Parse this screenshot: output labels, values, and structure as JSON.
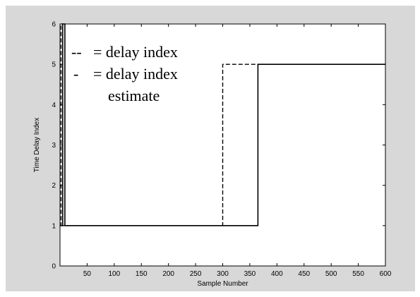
{
  "chart_data": {
    "type": "line",
    "xlabel": "Sample Number",
    "ylabel": "Time Delay Index",
    "xlim": [
      0,
      600
    ],
    "ylim": [
      0,
      6
    ],
    "xticks": [
      50,
      100,
      150,
      200,
      250,
      300,
      350,
      400,
      450,
      500,
      550,
      600
    ],
    "yticks": [
      0,
      1,
      2,
      3,
      4,
      5,
      6
    ],
    "grid": false,
    "legend": [
      {
        "marker": "--",
        "text": "= delay index"
      },
      {
        "marker": "-",
        "text": "= delay index",
        "text2": "estimate"
      }
    ],
    "series": [
      {
        "style": "dashed",
        "x": [
          0,
          2,
          2,
          5,
          5,
          300,
          300,
          600
        ],
        "y": [
          1,
          1,
          6,
          6,
          1,
          1,
          5,
          5
        ]
      },
      {
        "style": "solid",
        "x": [
          0,
          5,
          5,
          9,
          9,
          365,
          365,
          600
        ],
        "y": [
          1,
          1,
          6,
          6,
          1,
          1,
          5,
          5
        ]
      }
    ],
    "colors": {
      "figure_bg": "#d8d8d8",
      "axes_bg": "#ffffff",
      "line": "#000000"
    }
  }
}
